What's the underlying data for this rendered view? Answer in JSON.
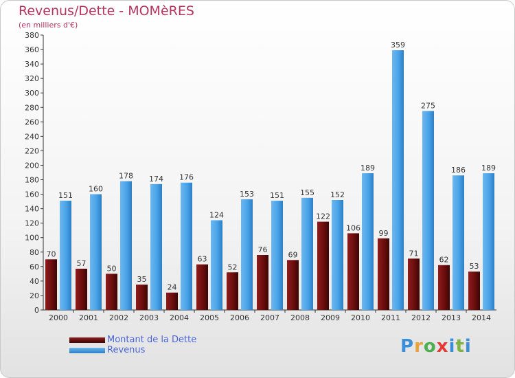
{
  "title": "Revenus/Dette - MOMèRES",
  "subtitle": "(en milliers d'€)",
  "logo_text": "Proxiti",
  "colors": {
    "debt": "#6b0d0d",
    "revenue": "#4aa3e8",
    "title": "#b5335f",
    "legend_text": "#4a66d6"
  },
  "legend": [
    {
      "label": "Montant de la Dette",
      "color": "#6b0d0d"
    },
    {
      "label": "Revenus",
      "color": "#4aa3e8"
    }
  ],
  "chart_data": {
    "type": "bar",
    "title": "Revenus/Dette - MOMèRES",
    "subtitle": "(en milliers d'€)",
    "categories": [
      "2000",
      "2001",
      "2002",
      "2003",
      "2004",
      "2005",
      "2006",
      "2007",
      "2008",
      "2009",
      "2010",
      "2011",
      "2012",
      "2013",
      "2014"
    ],
    "series": [
      {
        "name": "Montant de la Dette",
        "values": [
          70,
          57,
          50,
          35,
          24,
          63,
          52,
          76,
          69,
          122,
          106,
          99,
          71,
          62,
          53
        ]
      },
      {
        "name": "Revenus",
        "values": [
          151,
          160,
          178,
          174,
          176,
          124,
          153,
          151,
          155,
          152,
          189,
          359,
          275,
          186,
          189
        ]
      }
    ],
    "ylim": [
      0,
      380
    ],
    "ytick_step": 20,
    "grid": false,
    "legend_position": "bottom-left"
  }
}
